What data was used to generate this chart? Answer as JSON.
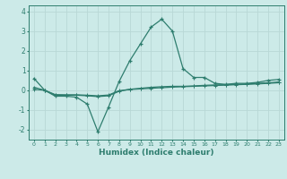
{
  "xlabel": "Humidex (Indice chaleur)",
  "x_values": [
    0,
    1,
    2,
    3,
    4,
    5,
    6,
    7,
    8,
    9,
    10,
    11,
    12,
    13,
    14,
    15,
    16,
    17,
    18,
    19,
    20,
    21,
    22,
    23
  ],
  "line1": [
    0.6,
    0.0,
    -0.3,
    -0.3,
    -0.35,
    -0.7,
    -2.1,
    -0.85,
    0.45,
    1.5,
    2.35,
    3.2,
    3.6,
    3.0,
    1.1,
    0.65,
    0.65,
    0.35,
    0.3,
    0.35,
    0.35,
    0.4,
    0.5,
    0.55
  ],
  "line2": [
    0.15,
    0.0,
    -0.25,
    -0.25,
    -0.25,
    -0.28,
    -0.32,
    -0.28,
    -0.05,
    0.05,
    0.1,
    0.15,
    0.18,
    0.2,
    0.2,
    0.22,
    0.25,
    0.27,
    0.28,
    0.3,
    0.32,
    0.35,
    0.38,
    0.42
  ],
  "line3": [
    0.05,
    0.0,
    -0.22,
    -0.23,
    -0.23,
    -0.25,
    -0.28,
    -0.24,
    -0.02,
    0.04,
    0.07,
    0.1,
    0.13,
    0.16,
    0.18,
    0.2,
    0.22,
    0.24,
    0.26,
    0.28,
    0.3,
    0.32,
    0.35,
    0.38
  ],
  "line_color": "#2e7d6e",
  "bg_color": "#cceae8",
  "grid_color": "#b8d8d6",
  "ylim": [
    -2.5,
    4.3
  ],
  "xlim": [
    -0.5,
    23.5
  ]
}
